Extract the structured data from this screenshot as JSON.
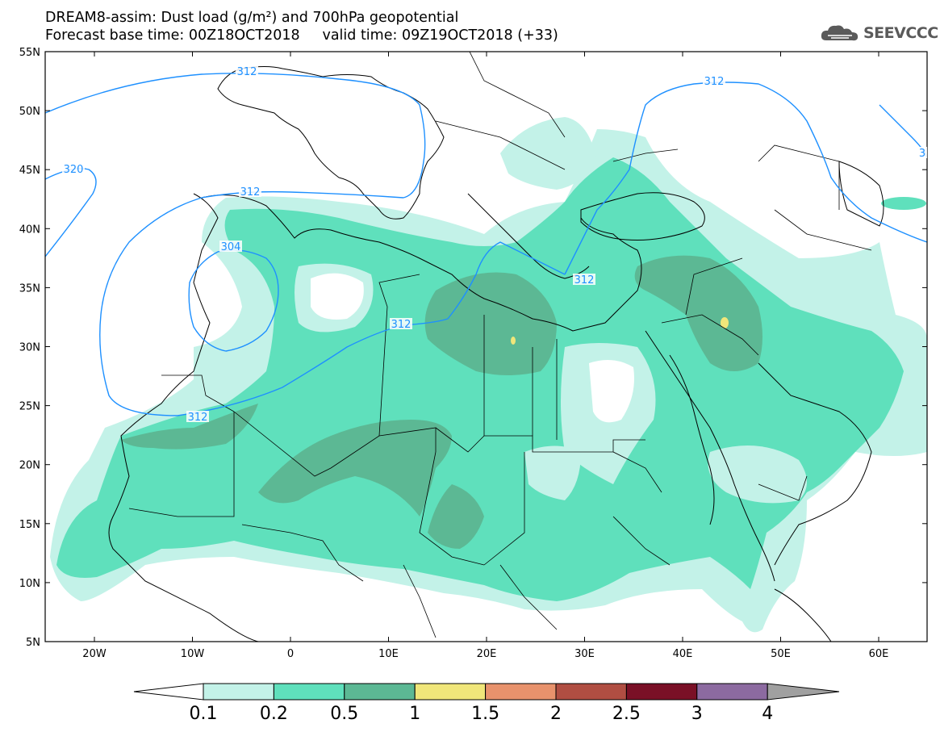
{
  "header": {
    "line1": "DREAM8-assim: Dust load (g/m²) and 700hPa geopotential",
    "base": "Forecast base time: 00Z18OCT2018",
    "valid": "valid time: 09Z19OCT2018 (+33)"
  },
  "logo": {
    "text": "SEEVCCC",
    "icon": "cloud-icon"
  },
  "map": {
    "lat_labels": [
      "55N",
      "50N",
      "45N",
      "40N",
      "35N",
      "30N",
      "25N",
      "20N",
      "15N",
      "10N",
      "5N"
    ],
    "lon_labels": [
      "20W",
      "10W",
      "0",
      "10E",
      "20E",
      "30E",
      "40E",
      "50E",
      "60E"
    ],
    "contour_labels": [
      "312",
      "312",
      "320",
      "312",
      "304",
      "312",
      "312",
      "312",
      "3"
    ]
  },
  "colorbar": {
    "labels": [
      "0.1",
      "0.2",
      "0.5",
      "1",
      "1.5",
      "2",
      "2.5",
      "3",
      "4"
    ],
    "colors": [
      "#c3f2e8",
      "#5fe0bc",
      "#5cb894",
      "#f0e67a",
      "#e8926c",
      "#b04e42",
      "#7a1026",
      "#8c6aa0"
    ],
    "under_color": "#ffffff",
    "over_color": "#a0a0a0"
  },
  "colors": {
    "dust_light": "#c3f2e8",
    "dust_mid": "#5fe0bc",
    "dust_dark": "#5cb894",
    "dust_yellow": "#f0e67a",
    "contour": "#1e90ff"
  }
}
